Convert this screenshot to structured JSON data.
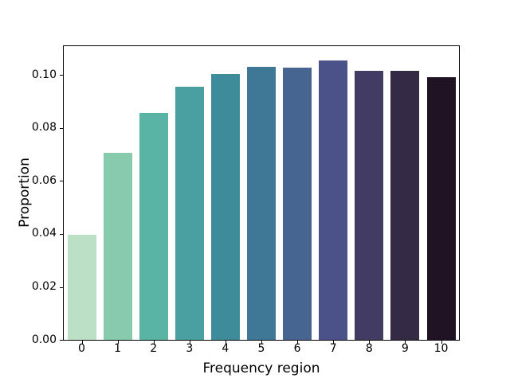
{
  "figure": {
    "background_color": "#ffffff",
    "axis_color": "#000000",
    "text_color": "#000000"
  },
  "chart_data": {
    "type": "bar",
    "title": "",
    "xlabel": "Frequency region",
    "ylabel": "Proportion",
    "categories": [
      "0",
      "1",
      "2",
      "3",
      "4",
      "5",
      "6",
      "7",
      "8",
      "9",
      "10"
    ],
    "values": [
      0.0397,
      0.0706,
      0.0858,
      0.0956,
      0.1003,
      0.1032,
      0.1027,
      0.1056,
      0.1017,
      0.1015,
      0.0992
    ],
    "bar_colors": [
      "#bce0c6",
      "#88caac",
      "#5ab4a6",
      "#4aa0a1",
      "#3e8b9b",
      "#3f7897",
      "#466590",
      "#4b5289",
      "#423c64",
      "#342a46",
      "#201424"
    ],
    "ylim": [
      0,
      0.1109
    ],
    "yticks": [
      0,
      0.02,
      0.04,
      0.06,
      0.08,
      0.1
    ],
    "ytick_labels": [
      "0.00",
      "0.02",
      "0.04",
      "0.06",
      "0.08",
      "0.10"
    ],
    "grid": false,
    "legend": null
  }
}
